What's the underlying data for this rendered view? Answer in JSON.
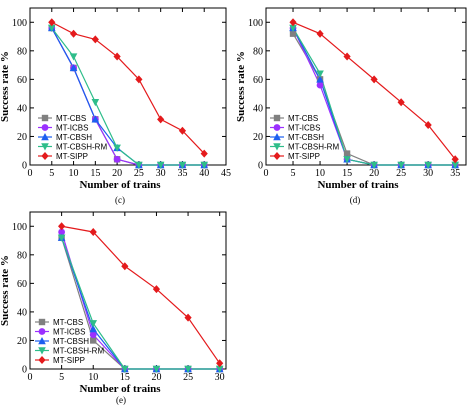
{
  "colors": {
    "MT-CBS": "#808080",
    "MT-ICBS": "#9b30ff",
    "MT-CBSH": "#1c5ff0",
    "MT-CBSH-RM": "#2ebd8a",
    "MT-SIPP": "#e41a1c"
  },
  "markers": {
    "MT-CBS": "square",
    "MT-ICBS": "circle",
    "MT-CBSH": "triangle-up",
    "MT-CBSH-RM": "triangle-down",
    "MT-SIPP": "diamond"
  },
  "chart_data": [
    {
      "type": "line",
      "caption": "(c)",
      "xlabel": "Number of trains",
      "ylabel": "Success rate %",
      "xlim": [
        0,
        45
      ],
      "ylim": [
        0,
        110
      ],
      "xticks": [
        0,
        5,
        10,
        15,
        20,
        25,
        30,
        35,
        40,
        45
      ],
      "yticks": [
        0,
        20,
        40,
        60,
        80,
        100
      ],
      "legend_position": "bottom-left",
      "x": [
        5,
        10,
        15,
        20,
        25,
        30,
        35,
        40
      ],
      "series": [
        {
          "name": "MT-CBS",
          "values": [
            96,
            68,
            32,
            4,
            0,
            0,
            0,
            0
          ]
        },
        {
          "name": "MT-ICBS",
          "values": [
            96,
            68,
            32,
            4,
            0,
            0,
            0,
            0
          ]
        },
        {
          "name": "MT-CBSH",
          "values": [
            96,
            68,
            32,
            12,
            0,
            0,
            0,
            0
          ]
        },
        {
          "name": "MT-CBSH-RM",
          "values": [
            96,
            76,
            44,
            12,
            0,
            0,
            0,
            0
          ]
        },
        {
          "name": "MT-SIPP",
          "values": [
            100,
            92,
            88,
            76,
            60,
            32,
            24,
            8
          ]
        }
      ]
    },
    {
      "type": "line",
      "caption": "(d)",
      "xlabel": "Number of trains",
      "ylabel": "Success rate %",
      "xlim": [
        0,
        37
      ],
      "ylim": [
        0,
        110
      ],
      "xticks": [
        0,
        5,
        10,
        15,
        20,
        25,
        30,
        35
      ],
      "yticks": [
        0,
        20,
        40,
        60,
        80,
        100
      ],
      "legend_position": "bottom-left",
      "x": [
        5,
        10,
        15,
        20,
        25,
        30,
        35
      ],
      "series": [
        {
          "name": "MT-CBS",
          "values": [
            92,
            60,
            8,
            0,
            0,
            0,
            0
          ]
        },
        {
          "name": "MT-ICBS",
          "values": [
            96,
            56,
            4,
            0,
            0,
            0,
            0
          ]
        },
        {
          "name": "MT-CBSH",
          "values": [
            96,
            60,
            4,
            0,
            0,
            0,
            0
          ]
        },
        {
          "name": "MT-CBSH-RM",
          "values": [
            96,
            64,
            4,
            0,
            0,
            0,
            0
          ]
        },
        {
          "name": "MT-SIPP",
          "values": [
            100,
            92,
            76,
            60,
            44,
            28,
            4
          ]
        }
      ]
    },
    {
      "type": "line",
      "caption": "(e)",
      "xlabel": "Number of trains",
      "ylabel": "Success rate %",
      "xlim": [
        0,
        31
      ],
      "ylim": [
        0,
        110
      ],
      "xticks": [
        0,
        5,
        10,
        15,
        20,
        25,
        30
      ],
      "yticks": [
        0,
        20,
        40,
        60,
        80,
        100
      ],
      "legend_position": "bottom-left",
      "x": [
        5,
        10,
        15,
        20,
        25,
        30
      ],
      "series": [
        {
          "name": "MT-CBS",
          "values": [
            92,
            20,
            0,
            0,
            0,
            0
          ]
        },
        {
          "name": "MT-ICBS",
          "values": [
            96,
            24,
            0,
            0,
            0,
            0
          ]
        },
        {
          "name": "MT-CBSH",
          "values": [
            92,
            28,
            0,
            0,
            0,
            0
          ]
        },
        {
          "name": "MT-CBSH-RM",
          "values": [
            92,
            32,
            0,
            0,
            0,
            0
          ]
        },
        {
          "name": "MT-SIPP",
          "values": [
            100,
            96,
            72,
            56,
            36,
            4
          ]
        }
      ]
    }
  ]
}
